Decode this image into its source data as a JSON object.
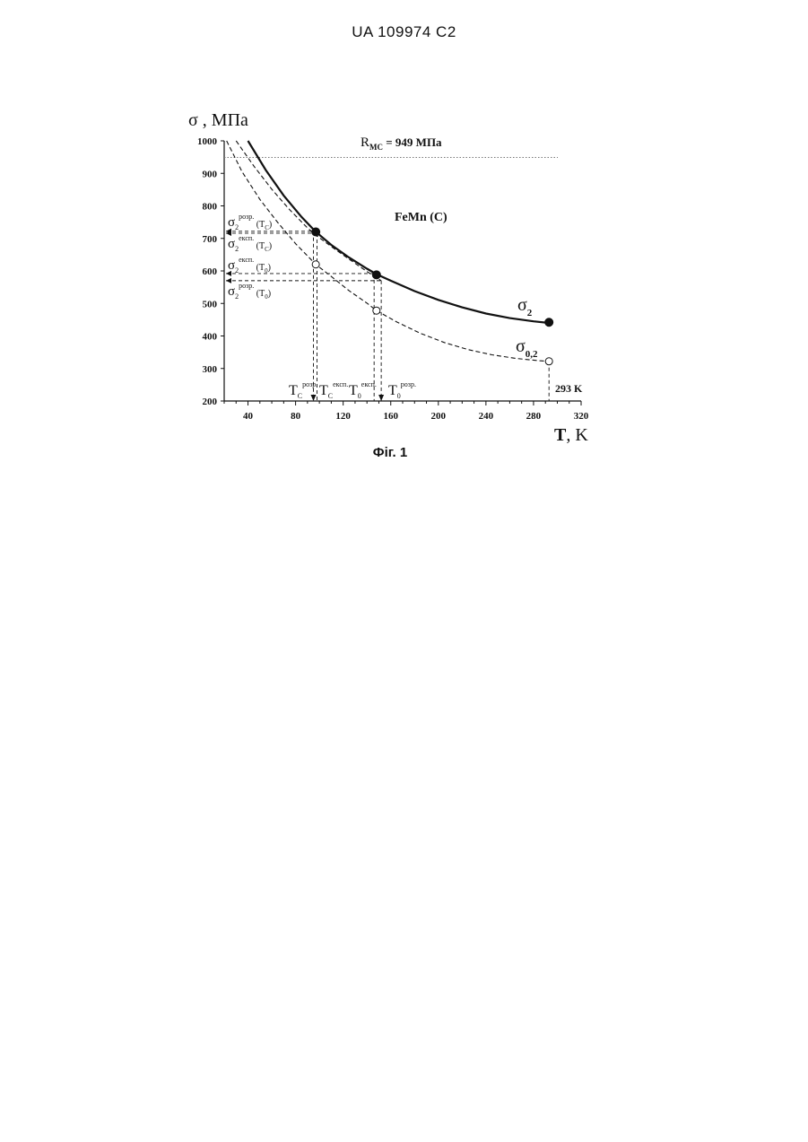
{
  "header": {
    "doc_id": "UA   109974   C2"
  },
  "caption": "Фіг. 1",
  "chart_data": {
    "type": "line",
    "title": "",
    "material_label": "FeMn (C)",
    "xlabel": {
      "main": "T",
      "unit": ", K"
    },
    "ylabel": "σ , МПа",
    "xlim": [
      20,
      320
    ],
    "ylim": [
      200,
      1000
    ],
    "x_ticks": [
      40,
      80,
      120,
      160,
      200,
      240,
      280,
      320
    ],
    "y_ticks": [
      200,
      300,
      400,
      500,
      600,
      700,
      800,
      900,
      1000
    ],
    "grid": false,
    "reference_line": {
      "label_main": "R",
      "label_sub": "MC",
      "label_rest": " = 949 МПа",
      "value": 949
    },
    "series": [
      {
        "name": "σ2",
        "name_main": "σ",
        "name_sub": "2",
        "style": "solid",
        "x": [
          40,
          55,
          70,
          85,
          97,
          110,
          125,
          140,
          148,
          160,
          180,
          200,
          220,
          240,
          260,
          280,
          293
        ],
        "y": [
          1000,
          910,
          832,
          766,
          720,
          680,
          641,
          607,
          590,
          570,
          538,
          511,
          488,
          469,
          455,
          445,
          440
        ],
        "markers": [
          {
            "x": 97,
            "y": 720,
            "filled": true
          },
          {
            "x": 148,
            "y": 588,
            "filled": true
          },
          {
            "x": 293,
            "y": 442,
            "filled": true
          }
        ]
      },
      {
        "name": "σ0,2",
        "name_main": "σ",
        "name_sub": "0,2",
        "style": "dashed",
        "x": [
          22,
          35,
          50,
          65,
          80,
          97,
          110,
          125,
          140,
          148,
          165,
          185,
          205,
          225,
          245,
          265,
          285,
          293
        ],
        "y": [
          1000,
          905,
          820,
          749,
          684,
          620,
          583,
          539,
          501,
          478,
          443,
          408,
          380,
          358,
          342,
          331,
          324,
          322
        ],
        "markers": [
          {
            "x": 97,
            "y": 620,
            "filled": false
          },
          {
            "x": 148,
            "y": 478,
            "filled": false
          },
          {
            "x": 293,
            "y": 322,
            "filled": false
          }
        ]
      },
      {
        "name": "",
        "style": "dashed",
        "x": [
          30,
          45,
          60,
          75,
          90,
          97,
          110,
          125,
          140,
          152
        ],
        "y": [
          1000,
          922,
          851,
          788,
          732,
          710,
          675,
          636,
          598,
          570
        ],
        "markers": []
      }
    ],
    "guides_h": [
      {
        "y": 722,
        "x_end": 97,
        "label_main": "σ",
        "label_sub": "2",
        "label_sup": "розр.",
        "label_arg": "(T",
        "label_arg_sub": "C",
        "label_close": ")"
      },
      {
        "y": 716,
        "x_end": 97,
        "label_main": "σ",
        "label_sub": "2",
        "label_sup": "експ.",
        "label_arg": "(T",
        "label_arg_sub": "C",
        "label_close": ")"
      },
      {
        "y": 592,
        "x_end": 148,
        "label_main": "σ",
        "label_sub": "2",
        "label_sup": "експ.",
        "label_arg": "(T",
        "label_arg_sub": "0",
        "label_close": ")"
      },
      {
        "y": 570,
        "x_end": 152,
        "label_main": "σ",
        "label_sub": "2",
        "label_sup": "розр.",
        "label_arg": "(T",
        "label_arg_sub": "0",
        "label_close": ")"
      }
    ],
    "guides_v": [
      {
        "x": 95,
        "y_top": 722,
        "arrow": true,
        "label_main": "T",
        "label_sub": "C",
        "label_sup": "розр."
      },
      {
        "x": 98,
        "y_top": 716,
        "arrow": false,
        "label_main": "T",
        "label_sub": "C",
        "label_sup": "експ."
      },
      {
        "x": 146,
        "y_top": 592,
        "arrow": false,
        "label_main": "T",
        "label_sub": "0",
        "label_sup": "експ."
      },
      {
        "x": 152,
        "y_top": 570,
        "arrow": true,
        "label_main": "T",
        "label_sub": "0",
        "label_sup": "розр."
      },
      {
        "x": 293,
        "y_top": 322,
        "arrow": false
      }
    ],
    "annotation_293": "293 K",
    "colors": {
      "ink": "#111111",
      "reference_line": "#777777"
    }
  }
}
